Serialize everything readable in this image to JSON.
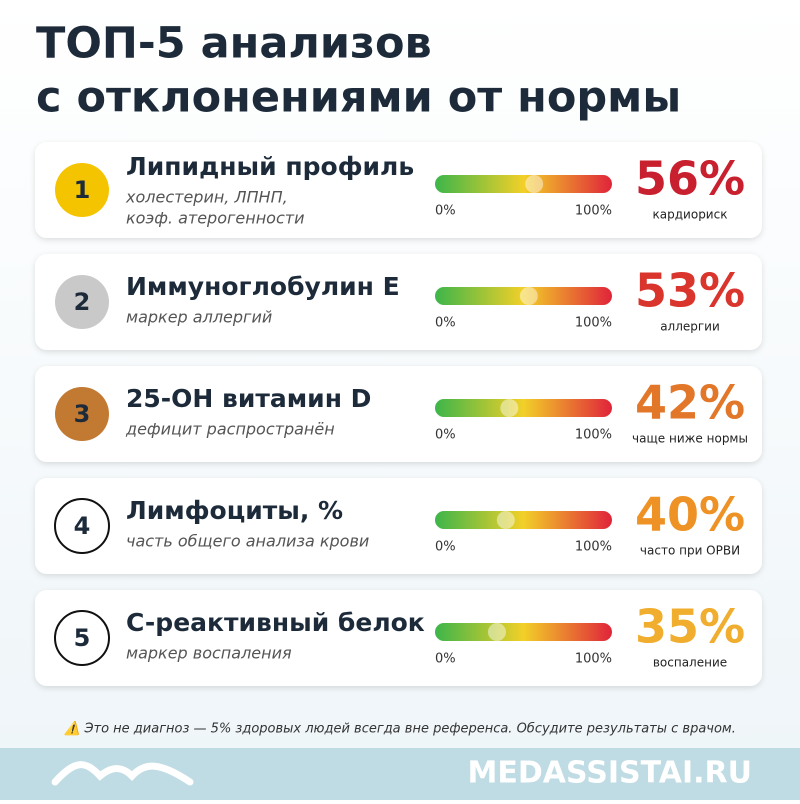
{
  "header": {
    "title_line1": "ТОП-5 анализов",
    "title_line2": "с отклонениями от нормы"
  },
  "scale": {
    "min": {
      "value": 0,
      "label": "0%"
    },
    "max": {
      "value": 100,
      "label": "100%"
    }
  },
  "items": [
    {
      "rank": "1",
      "name": "Липидный профиль",
      "subtitle_lines": [
        "холестерин, ЛПНП,",
        "коэф. атерогенности"
      ],
      "value": 56,
      "value_label": "56%",
      "caption": "кардиориск",
      "badge_color": "#f5c400",
      "value_color": "#c8202e"
    },
    {
      "rank": "2",
      "name": "Иммуноглобулин E",
      "subtitle_lines": [
        "маркер аллергий"
      ],
      "value": 53,
      "value_label": "53%",
      "caption": "аллергии",
      "badge_color": "#c9c9c9",
      "value_color": "#d9352d"
    },
    {
      "rank": "3",
      "name": "25-OH витамин D",
      "subtitle_lines": [
        "дефицит распространён"
      ],
      "value": 42,
      "value_label": "42%",
      "caption": "чаще ниже нормы",
      "badge_color": "#c27a32",
      "value_color": "#e2772a"
    },
    {
      "rank": "4",
      "name": "Лимфоциты, %",
      "subtitle_lines": [
        "часть общего анализа крови"
      ],
      "value": 40,
      "value_label": "40%",
      "caption": "часто при ОРВИ",
      "badge_color": "#ffffff",
      "value_color": "#ee9226"
    },
    {
      "rank": "5",
      "name": "C-реактивный белок",
      "subtitle_lines": [
        "маркер воспаления"
      ],
      "value": 35,
      "value_label": "35%",
      "caption": "воспаление",
      "badge_color": "#ffffff",
      "value_color": "#f0ad2e"
    }
  ],
  "footer": {
    "warning": "⚠️ Это не диагноз — 5% здоровых людей всегда вне референса. Обсудите результаты с врачом.",
    "brand": "MEDASSISTAI.RU"
  }
}
